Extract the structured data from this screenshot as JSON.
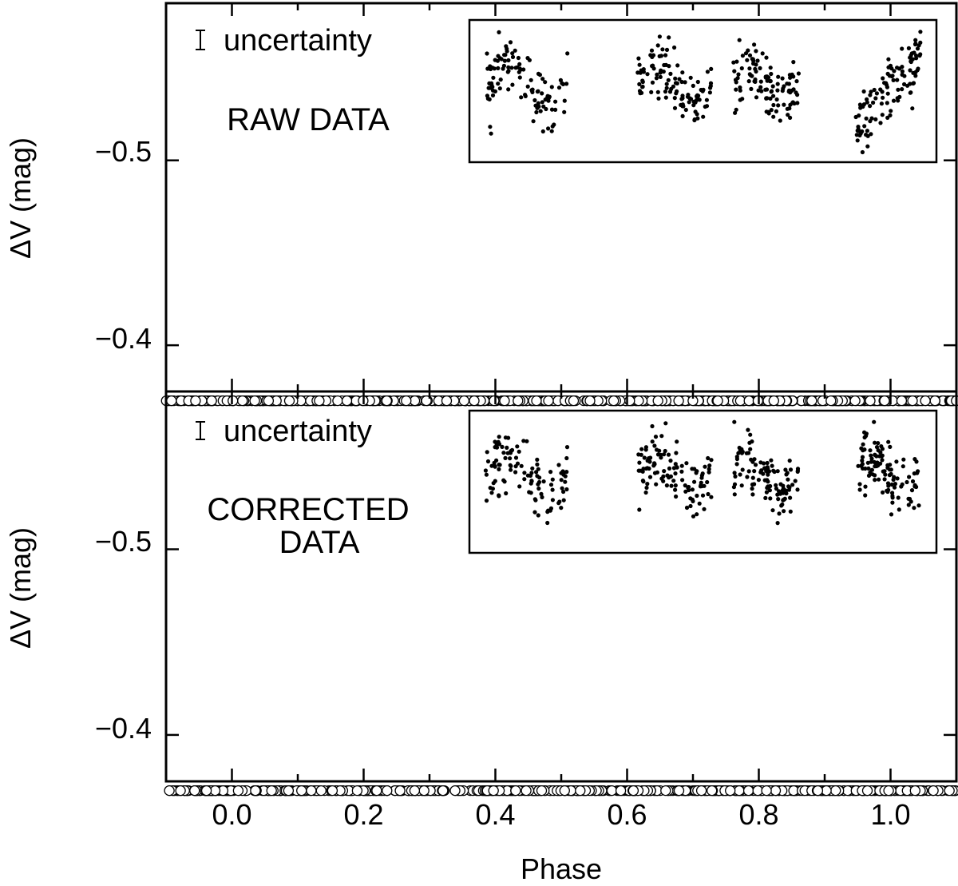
{
  "chart_data": [
    {
      "type": "scatter",
      "panel": "top",
      "annotation": "RAW DATA",
      "legend_text": "uncertainty",
      "xlabel": "",
      "ylabel": "ΔV (mag)",
      "xlim": [
        -0.1,
        1.1
      ],
      "ylim": [
        -0.375,
        -0.585
      ],
      "y_inverted": true,
      "y_ticks": [
        -0.5,
        -0.4
      ],
      "y_tick_labels": [
        "−0.5",
        "−0.4"
      ],
      "x_ticks": [
        0.0,
        0.2,
        0.4,
        0.6,
        0.8,
        1.0
      ],
      "curve": {
        "description_only_for_generation": false,
        "baseline": -0.425,
        "amplitude": 0.045,
        "peak_phase": 0.55,
        "scatter": 0.012,
        "count": 620,
        "seed": 7
      },
      "inset_segments": [
        [
          0.0,
          0.19
        ],
        [
          0.35,
          0.52
        ],
        [
          0.57,
          0.72
        ],
        [
          0.85,
          1.0
        ]
      ],
      "inset_seed": 11
    },
    {
      "type": "scatter",
      "panel": "bottom",
      "annotation_lines": [
        "CORRECTED",
        "DATA"
      ],
      "legend_text": "uncertainty",
      "xlabel": "Phase",
      "ylabel": "ΔV (mag)",
      "xlim": [
        -0.1,
        1.1
      ],
      "ylim": [
        -0.375,
        -0.585
      ],
      "y_inverted": true,
      "y_ticks": [
        -0.5,
        -0.4
      ],
      "y_tick_labels": [
        "−0.5",
        "−0.4"
      ],
      "x_ticks": [
        0.0,
        0.2,
        0.4,
        0.6,
        0.8,
        1.0
      ],
      "x_tick_labels": [
        "0.0",
        "0.2",
        "0.4",
        "0.6",
        "0.8",
        "1.0"
      ],
      "curve": {
        "baseline": -0.424,
        "amplitude": 0.04,
        "peak_phase": 0.55,
        "scatter": 0.006,
        "count": 620,
        "seed": 23
      },
      "inset_segments": [
        [
          0.0,
          0.19
        ],
        [
          0.35,
          0.52
        ],
        [
          0.57,
          0.72
        ],
        [
          0.85,
          1.0
        ]
      ],
      "inset_seed": 31
    }
  ]
}
